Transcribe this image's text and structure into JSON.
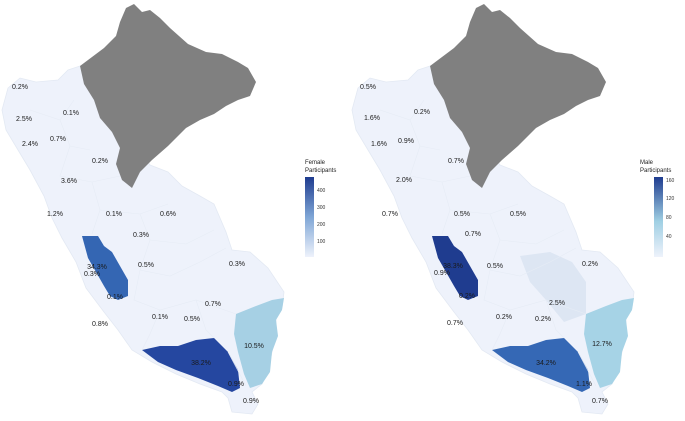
{
  "colors": {
    "background": "#ffffff",
    "no_data": "#808080",
    "scale_low": "#eef2fb",
    "scale_high": "#1f3c8f",
    "male_scale_mid": "#9fcfe3"
  },
  "maps": [
    {
      "id": "female",
      "legend": {
        "title_lines": [
          "Female",
          "Participants"
        ],
        "ticks": [
          "400",
          "300",
          "200",
          "100"
        ],
        "range": [
          0,
          480
        ]
      },
      "regions": [
        {
          "label": "0.2%",
          "value": 0.2
        },
        {
          "label": "2.5%",
          "value": 2.5
        },
        {
          "label": "0.1%",
          "value": 0.1
        },
        {
          "label": "2.4%",
          "value": 2.4
        },
        {
          "label": "0.7%",
          "value": 0.7
        },
        {
          "label": "0.2%",
          "value": 0.2
        },
        {
          "label": "3.6%",
          "value": 3.6
        },
        {
          "label": "1.2%",
          "value": 1.2
        },
        {
          "label": "0.1%",
          "value": 0.1
        },
        {
          "label": "0.6%",
          "value": 0.6
        },
        {
          "label": "0.3%",
          "value": 0.3
        },
        {
          "label": "34.3%",
          "value": 34.3
        },
        {
          "label": "0.3%",
          "value": 0.3
        },
        {
          "label": "0.5%",
          "value": 0.5
        },
        {
          "label": "0.3%",
          "value": 0.3
        },
        {
          "label": "0.1%",
          "value": 0.1
        },
        {
          "label": "0.7%",
          "value": 0.7
        },
        {
          "label": "0.8%",
          "value": 0.8
        },
        {
          "label": "0.1%",
          "value": 0.1
        },
        {
          "label": "0.5%",
          "value": 0.5
        },
        {
          "label": "10.5%",
          "value": 10.5
        },
        {
          "label": "38.2%",
          "value": 38.2
        },
        {
          "label": "0.9%",
          "value": 0.9
        },
        {
          "label": "0.9%",
          "value": 0.9
        }
      ]
    },
    {
      "id": "male",
      "legend": {
        "title_lines": [
          "Male",
          "Participants"
        ],
        "ticks": [
          "160",
          "120",
          "80",
          "40"
        ],
        "range": [
          0,
          170
        ]
      },
      "regions": [
        {
          "label": "0.5%",
          "value": 0.5
        },
        {
          "label": "1.6%",
          "value": 1.6
        },
        {
          "label": "0.2%",
          "value": 0.2
        },
        {
          "label": "1.6%",
          "value": 1.6
        },
        {
          "label": "0.9%",
          "value": 0.9
        },
        {
          "label": "0.7%",
          "value": 0.7
        },
        {
          "label": "2.0%",
          "value": 2.0
        },
        {
          "label": "0.7%",
          "value": 0.7
        },
        {
          "label": "0.5%",
          "value": 0.5
        },
        {
          "label": "0.5%",
          "value": 0.5
        },
        {
          "label": "0.7%",
          "value": 0.7
        },
        {
          "label": "38.3%",
          "value": 38.3
        },
        {
          "label": "0.9%",
          "value": 0.9
        },
        {
          "label": "0.5%",
          "value": 0.5
        },
        {
          "label": "0.2%",
          "value": 0.2
        },
        {
          "label": "0.2%",
          "value": 0.2
        },
        {
          "label": "2.5%",
          "value": 2.5
        },
        {
          "label": "0.7%",
          "value": 0.7
        },
        {
          "label": "0.2%",
          "value": 0.2
        },
        {
          "label": "0.2%",
          "value": 0.2
        },
        {
          "label": "12.7%",
          "value": 12.7
        },
        {
          "label": "34.2%",
          "value": 34.2
        },
        {
          "label": "1.1%",
          "value": 1.1
        },
        {
          "label": "0.7%",
          "value": 0.7
        }
      ]
    }
  ]
}
